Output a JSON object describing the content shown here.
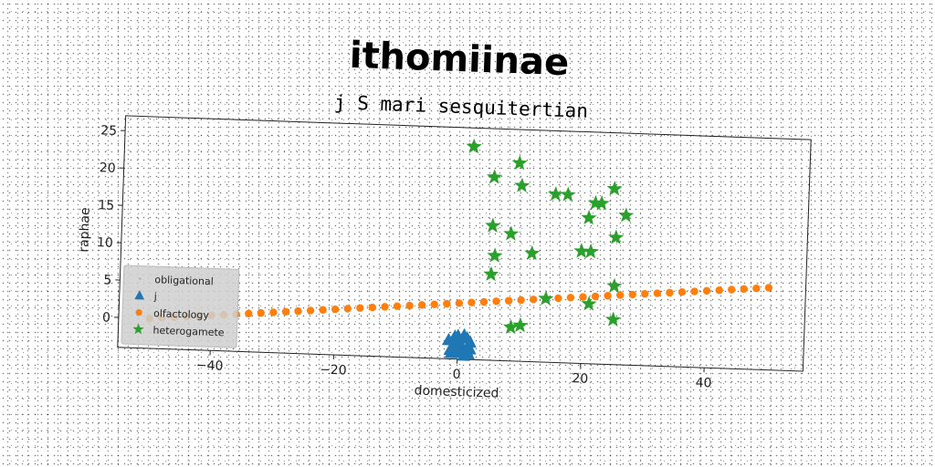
{
  "chart_data": {
    "type": "scatter",
    "title": "ithomiinae",
    "subtitle": "j S mari sesquitertian",
    "xlabel": "domesticized",
    "ylabel": "raphae",
    "xlim": [
      -55,
      56
    ],
    "ylim": [
      -4,
      27
    ],
    "xticks": [
      -40,
      -20,
      0,
      20,
      40
    ],
    "yticks": [
      0,
      5,
      10,
      15,
      20,
      25
    ],
    "grid": false,
    "legend_position": "lower-left",
    "series": [
      {
        "name": "obligational",
        "marker": "point",
        "color": "#aaaaaa",
        "x": [],
        "y": []
      },
      {
        "name": "j",
        "marker": "triangle",
        "color": "#1f77b4",
        "x": [
          -1.5,
          -1,
          -0.5,
          0,
          0.5,
          1,
          1.5,
          2,
          -1,
          0,
          1,
          2,
          -0.5,
          0.5,
          1.5,
          0,
          1,
          -1.2,
          1.8,
          0.2
        ],
        "y": [
          -1.5,
          -2.5,
          -1,
          -3,
          -2,
          -0.8,
          -2.8,
          -1.7,
          -3.2,
          -0.9,
          -3.5,
          -2.6,
          -1.9,
          -3.1,
          -1.2,
          -2.2,
          -2.9,
          -2.8,
          -3.3,
          -1.6
        ]
      },
      {
        "name": "olfactology",
        "marker": "circle",
        "color": "#ff7f0e",
        "x": [
          -50,
          -48,
          -46,
          -44,
          -42,
          -40,
          -38,
          -36,
          -34,
          -32,
          -30,
          -28,
          -26,
          -24,
          -22,
          -20,
          -18,
          -16,
          -14,
          -12,
          -10,
          -8,
          -6,
          -4,
          -2,
          0,
          2,
          4,
          6,
          8,
          10,
          12,
          14,
          16,
          18,
          20,
          22,
          24,
          26,
          28,
          30,
          32,
          34,
          36,
          38,
          40,
          42,
          44,
          46,
          48,
          50
        ],
        "y": [
          0,
          0.14,
          0.28,
          0.42,
          0.56,
          0.7,
          0.84,
          0.98,
          1.12,
          1.26,
          1.4,
          1.54,
          1.68,
          1.82,
          1.96,
          2.1,
          2.24,
          2.38,
          2.52,
          2.66,
          2.8,
          2.94,
          3.08,
          3.22,
          3.36,
          3.5,
          3.64,
          3.78,
          3.92,
          4.06,
          4.2,
          4.34,
          4.48,
          4.62,
          4.76,
          4.9,
          5.04,
          5.18,
          5.32,
          5.46,
          5.6,
          5.74,
          5.88,
          6.02,
          6.16,
          6.3,
          6.44,
          6.58,
          6.72,
          6.86,
          7
        ]
      },
      {
        "name": "heterogamete",
        "marker": "star",
        "color": "#2ca02c",
        "x": [
          1.5,
          5,
          9,
          9.5,
          15,
          17,
          20.5,
          21.5,
          22.5,
          24.5,
          26.5,
          5,
          8,
          25,
          5.5,
          11.5,
          19.5,
          21,
          5,
          25,
          14,
          21,
          25,
          8.5,
          10
        ],
        "y": [
          24.5,
          20.5,
          22.5,
          19.5,
          18.5,
          18.5,
          15.5,
          17.5,
          17.5,
          19.5,
          16,
          14,
          13,
          13,
          10,
          10.5,
          11,
          11,
          7.5,
          6.5,
          4.5,
          4,
          2,
          0.5,
          0.8
        ]
      }
    ]
  }
}
